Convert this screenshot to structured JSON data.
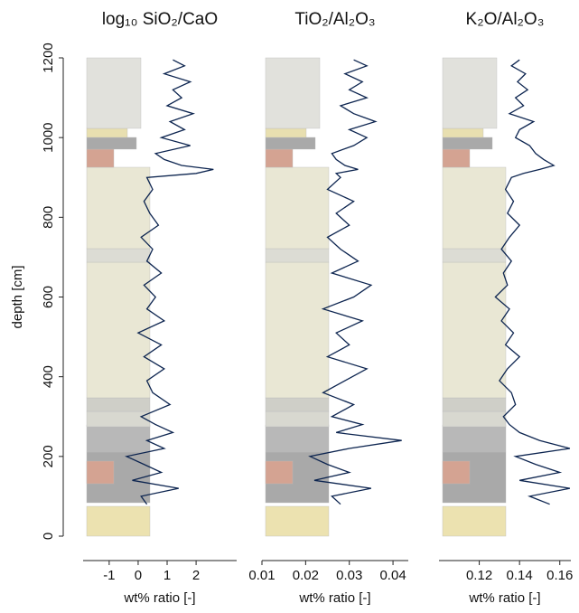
{
  "chart_data": [
    {
      "type": "line",
      "title": "log₁₀ SiO₂/CaO",
      "xlabel": "wt% ratio [-]",
      "ylabel": "depth [cm]",
      "xlim": [
        -1.9,
        3.4
      ],
      "xticks": [
        -1,
        0,
        1,
        2
      ],
      "ylim": [
        0,
        1200
      ],
      "yticks": [
        0,
        200,
        400,
        600,
        800,
        1000,
        1200
      ],
      "series": [
        {
          "color": "#0d2550",
          "x": [
            80,
            100,
            120,
            140,
            160,
            180,
            200,
            220,
            240,
            260,
            280,
            300,
            330,
            360,
            390,
            420,
            450,
            480,
            510,
            540,
            570,
            600,
            630,
            660,
            690,
            720,
            750,
            780,
            810,
            840,
            870,
            900,
            910,
            920,
            930,
            945,
            960,
            980,
            1000,
            1020,
            1040,
            1060,
            1080,
            1100,
            1120,
            1140,
            1160,
            1180,
            1195
          ],
          "values": [
            0.3,
            0.1,
            1.4,
            -0.2,
            0.8,
            0.2,
            -0.4,
            0.9,
            0.3,
            1.2,
            0.6,
            0.1,
            1.1,
            0.5,
            0.3,
            0.9,
            0.2,
            0.8,
            0.0,
            0.9,
            0.3,
            0.6,
            0.2,
            0.8,
            0.3,
            0.5,
            0.1,
            0.7,
            0.4,
            0.2,
            0.5,
            0.3,
            2.0,
            2.6,
            1.5,
            0.9,
            0.6,
            1.8,
            0.8,
            1.6,
            1.1,
            1.9,
            1.0,
            1.5,
            1.2,
            1.8,
            0.9,
            1.6,
            1.2
          ]
        }
      ]
    },
    {
      "type": "line",
      "title": "TiO₂/Al₂O₃",
      "xlabel": "wt% ratio [-]",
      "xlim": [
        0.01,
        0.0435
      ],
      "xticks": [
        0.01,
        0.02,
        0.03,
        0.04
      ],
      "ylim": [
        0,
        1200
      ],
      "series": [
        {
          "color": "#0d2550",
          "x": [
            80,
            100,
            120,
            140,
            160,
            180,
            200,
            220,
            240,
            260,
            280,
            300,
            330,
            360,
            390,
            420,
            450,
            480,
            510,
            540,
            570,
            600,
            630,
            660,
            690,
            720,
            750,
            780,
            810,
            840,
            870,
            900,
            910,
            920,
            930,
            945,
            960,
            980,
            1000,
            1020,
            1040,
            1060,
            1080,
            1100,
            1120,
            1140,
            1160,
            1180,
            1195
          ],
          "values": [
            0.028,
            0.026,
            0.035,
            0.022,
            0.03,
            0.025,
            0.021,
            0.03,
            0.042,
            0.027,
            0.033,
            0.026,
            0.031,
            0.024,
            0.029,
            0.034,
            0.025,
            0.03,
            0.027,
            0.033,
            0.024,
            0.031,
            0.035,
            0.026,
            0.032,
            0.028,
            0.025,
            0.03,
            0.027,
            0.031,
            0.025,
            0.028,
            0.027,
            0.032,
            0.029,
            0.027,
            0.026,
            0.031,
            0.034,
            0.03,
            0.036,
            0.031,
            0.028,
            0.034,
            0.03,
            0.033,
            0.029,
            0.034,
            0.031
          ]
        }
      ]
    },
    {
      "type": "line",
      "title": "K₂O/Al₂O₃",
      "xlabel": "wt% ratio [-]",
      "xlim": [
        0.1,
        0.1655
      ],
      "xticks": [
        0.12,
        0.14,
        0.16
      ],
      "ylim": [
        0,
        1200
      ],
      "series": [
        {
          "color": "#0d2550",
          "x": [
            80,
            100,
            120,
            140,
            160,
            180,
            200,
            220,
            240,
            260,
            280,
            300,
            330,
            360,
            390,
            420,
            450,
            480,
            510,
            540,
            570,
            600,
            630,
            660,
            690,
            720,
            750,
            780,
            810,
            840,
            870,
            900,
            910,
            920,
            930,
            945,
            960,
            980,
            1000,
            1020,
            1040,
            1060,
            1080,
            1100,
            1120,
            1140,
            1160,
            1180,
            1195
          ],
          "values": [
            0.155,
            0.145,
            0.165,
            0.14,
            0.16,
            0.148,
            0.138,
            0.165,
            0.15,
            0.14,
            0.135,
            0.132,
            0.138,
            0.136,
            0.13,
            0.134,
            0.14,
            0.133,
            0.137,
            0.131,
            0.135,
            0.128,
            0.134,
            0.132,
            0.136,
            0.131,
            0.135,
            0.14,
            0.134,
            0.137,
            0.133,
            0.136,
            0.142,
            0.15,
            0.157,
            0.152,
            0.148,
            0.145,
            0.138,
            0.14,
            0.147,
            0.135,
            0.142,
            0.138,
            0.144,
            0.139,
            0.143,
            0.136,
            0.14
          ]
        }
      ]
    }
  ]
}
